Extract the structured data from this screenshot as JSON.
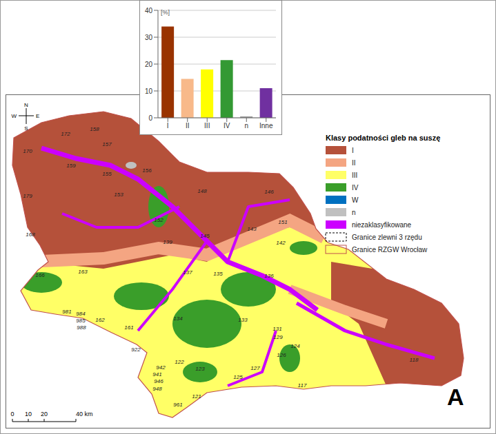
{
  "chart_data": {
    "type": "bar",
    "y_label": "[%]",
    "categories": [
      "I",
      "II",
      "III",
      "IV",
      "n",
      "Inne"
    ],
    "values": [
      34,
      14.5,
      18,
      21.5,
      0.5,
      11
    ],
    "colors": [
      "#993300",
      "#f8b98a",
      "#ffff00",
      "#339933",
      "#999999",
      "#7030a0"
    ],
    "ylim": [
      0,
      40
    ],
    "yticks": [
      0,
      10,
      20,
      30,
      40
    ],
    "grid": true
  },
  "map": {
    "panel_label": "A",
    "compass": {
      "north": "N",
      "south": "S",
      "west": "W",
      "east": "E"
    },
    "scale_bar": {
      "ticks": [
        {
          "value": 0,
          "label": "0"
        },
        {
          "value": 10,
          "label": "10"
        },
        {
          "value": 20,
          "label": "20"
        },
        {
          "value": 40,
          "label": "40 km"
        }
      ]
    },
    "legend": {
      "title": "Klasy podatności gleb na suszę",
      "items": [
        {
          "label": "I",
          "color": "#b5513a"
        },
        {
          "label": "II",
          "color": "#f4a582"
        },
        {
          "label": "III",
          "color": "#ffff66"
        },
        {
          "label": "IV",
          "color": "#3a9e2a"
        },
        {
          "label": "W",
          "color": "#0070c0"
        },
        {
          "label": "n",
          "color": "#c0c0c0"
        },
        {
          "label": "niezaklasyfikowane",
          "color": "#cc00ff"
        },
        {
          "label": "Granice zlewni 3 rzędu",
          "color": "#000000",
          "line_style": "dashed"
        },
        {
          "label": "Granice RZGW Wrocław",
          "color": "#c0504d",
          "line_style": "solid"
        }
      ]
    },
    "catchment_labels": [
      "172",
      "158",
      "157",
      "170",
      "159",
      "155",
      "156",
      "179",
      "153",
      "148",
      "146",
      "151",
      "152",
      "168",
      "145",
      "143",
      "142",
      "139",
      "166",
      "163",
      "137",
      "135",
      "136",
      "981",
      "984",
      "985",
      "988",
      "162",
      "161",
      "134",
      "133",
      "131",
      "129",
      "124",
      "126",
      "118",
      "922",
      "942",
      "122",
      "941",
      "946",
      "948",
      "123",
      "125",
      "127",
      "117",
      "121",
      "961"
    ]
  }
}
